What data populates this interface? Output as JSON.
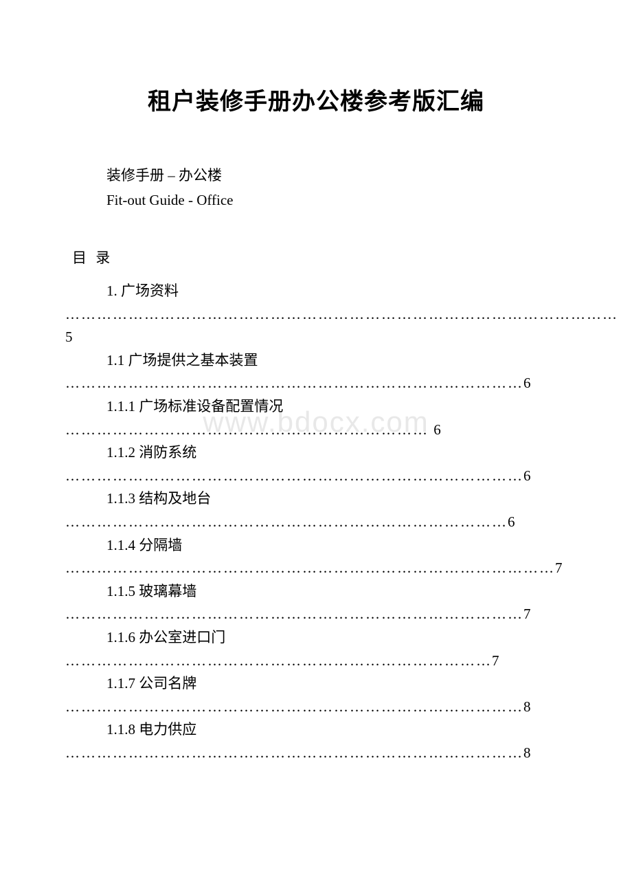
{
  "title": "租户装修手册办公楼参考版汇编",
  "subtitle_cn": "装修手册 – 办公楼",
  "subtitle_en": "Fit-out Guide - Office",
  "toc_heading": "目 录",
  "watermark": "www.bdocx.com",
  "toc": {
    "item1": {
      "label": "1. 广场资料",
      "dots": "…………………………………………………………………………………………… 5"
    },
    "item2": {
      "label": "1.1 广场提供之基本装置",
      "dots": "……………………………………………………………………………6"
    },
    "item3": {
      "label": "1.1.1  广场标准设备配置情况",
      "dots": "…………………………………………………………… 6"
    },
    "item4": {
      "label": "1.1.2  消防系统",
      "dots": "……………………………………………………………………………6"
    },
    "item5": {
      "label": "1.1.3  结构及地台",
      "dots": "…………………………………………………………………………6"
    },
    "item6": {
      "label": "1.1.4  分隔墙",
      "dots": "…………………………………………………………………………………7"
    },
    "item7": {
      "label": "1.1.5  玻璃幕墙",
      "dots": "……………………………………………………………………………7"
    },
    "item8": {
      "label": "1.1.6  办公室进口门",
      "dots": "………………………………………………………………………7"
    },
    "item9": {
      "label": "1.1.7  公司名牌",
      "dots": "……………………………………………………………………………8"
    },
    "item10": {
      "label": "1.1.8  电力供应",
      "dots": "……………………………………………………………………………8"
    }
  },
  "colors": {
    "background": "#ffffff",
    "text": "#000000",
    "watermark": "#e8e8e8"
  },
  "typography": {
    "title_fontsize": 34,
    "body_fontsize": 21,
    "font_family_cn": "SimSun",
    "font_family_en": "Times New Roman"
  }
}
